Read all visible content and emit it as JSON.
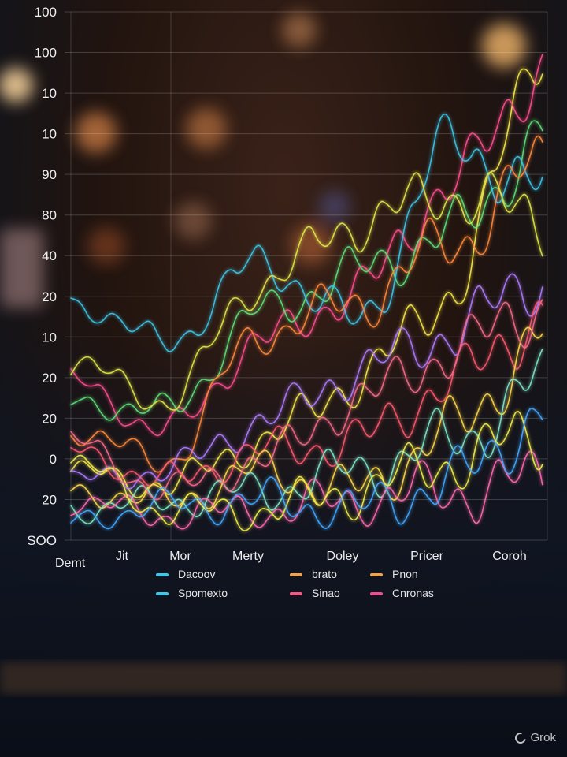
{
  "chart_data": {
    "type": "line",
    "y_tick_labels": [
      "100",
      "100",
      "10",
      "10",
      "90",
      "80",
      "40",
      "20",
      "10",
      "20",
      "20",
      "0",
      "20",
      "SOO"
    ],
    "x_axis_start_label": "Demt",
    "categories": [
      "Jit",
      "Mor",
      "Merty",
      "Doley",
      "Pricer",
      "Coroh"
    ],
    "grid": true,
    "legend_position": "bottom",
    "legend": [
      {
        "label": "Dacoov",
        "color": "#3cc6e8"
      },
      {
        "label": "Spomexto",
        "color": "#3cc6e8"
      },
      {
        "label": "brato",
        "color": "#f0a34a"
      },
      {
        "label": "Sinao",
        "color": "#ef5a86"
      },
      {
        "label": "Pnon",
        "color": "#f0a34a"
      },
      {
        "label": "Cnronas",
        "color": "#e8508c"
      }
    ],
    "ylim": [
      0,
      100
    ],
    "series": [
      {
        "color": "#f7e84a",
        "values": [
          12,
          9,
          18,
          30,
          48,
          100
        ]
      },
      {
        "color": "#ff4f90",
        "values": [
          30,
          20,
          38,
          48,
          70,
          94
        ]
      },
      {
        "color": "#5fe07a",
        "values": [
          26,
          24,
          44,
          52,
          60,
          80
        ]
      },
      {
        "color": "#3cc6e8",
        "values": [
          46,
          38,
          54,
          42,
          78,
          68
        ]
      },
      {
        "color": "#ff8a3c",
        "values": [
          20,
          14,
          40,
          46,
          58,
          74
        ]
      },
      {
        "color": "#e0e84a",
        "values": [
          34,
          26,
          50,
          62,
          68,
          62
        ]
      },
      {
        "color": "#b07cff",
        "values": [
          10,
          12,
          22,
          32,
          40,
          52
        ]
      },
      {
        "color": "#ff5a70",
        "values": [
          16,
          10,
          16,
          18,
          30,
          44
        ]
      },
      {
        "color": "#ffd84a",
        "values": [
          8,
          6,
          12,
          8,
          20,
          40
        ]
      },
      {
        "color": "#7ee8c8",
        "values": [
          4,
          6,
          8,
          12,
          18,
          30
        ]
      },
      {
        "color": "#ff6ab0",
        "values": [
          6,
          3,
          4,
          6,
          8,
          10
        ]
      },
      {
        "color": "#f2f04a",
        "values": [
          14,
          4,
          4,
          8,
          14,
          20
        ]
      },
      {
        "color": "#f76b8a",
        "values": [
          18,
          8,
          14,
          26,
          36,
          46
        ]
      },
      {
        "color": "#42a8ff",
        "values": [
          2,
          5,
          6,
          4,
          10,
          24
        ]
      }
    ]
  },
  "watermark": "Grok"
}
